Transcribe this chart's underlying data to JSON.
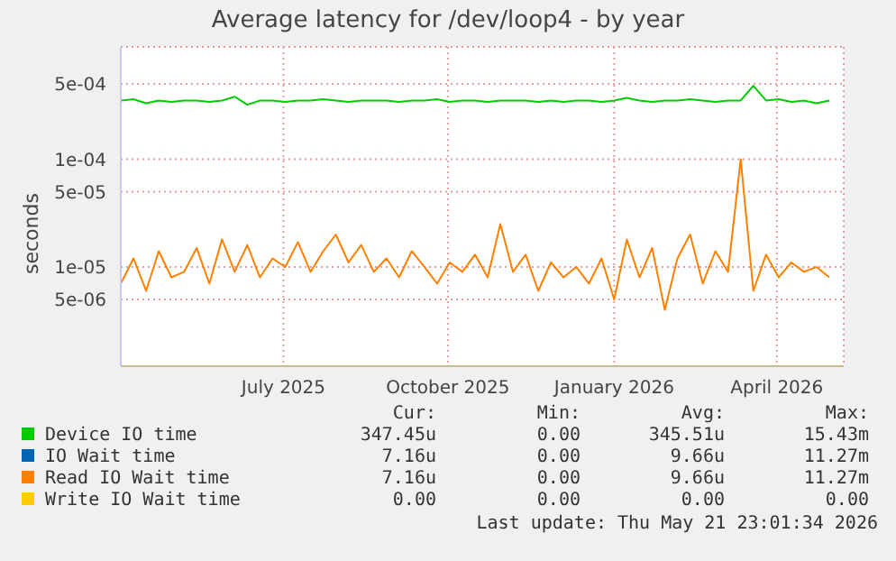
{
  "chart_data": {
    "type": "line",
    "title": "Average latency for /dev/loop4 - by year",
    "ylabel": "seconds",
    "log": "y",
    "grid": true,
    "legend": "bottom",
    "marker": "none",
    "line_style": "solid",
    "ylim": [
      1.2e-06,
      0.0011
    ],
    "yticks": [
      {
        "value": 5e-06,
        "label": "5e-06"
      },
      {
        "value": 1e-05,
        "label": "1e-05"
      },
      {
        "value": 5e-05,
        "label": "5e-05"
      },
      {
        "value": 0.0001,
        "label": "1e-04"
      },
      {
        "value": 0.0005,
        "label": "5e-04"
      }
    ],
    "xlim": [
      "2025-04-17",
      "2026-05-22"
    ],
    "xticks": [
      {
        "value": "2025-07-16",
        "label": "July 2025"
      },
      {
        "value": "2025-10-15",
        "label": "October 2025"
      },
      {
        "value": "2026-01-15",
        "label": "January 2026"
      },
      {
        "value": "2026-04-15",
        "label": "April 2026"
      }
    ],
    "x": [
      "2025-04-17",
      "2025-04-24",
      "2025-05-01",
      "2025-05-08",
      "2025-05-15",
      "2025-05-22",
      "2025-05-29",
      "2025-06-05",
      "2025-06-12",
      "2025-06-19",
      "2025-06-26",
      "2025-07-03",
      "2025-07-10",
      "2025-07-17",
      "2025-07-24",
      "2025-07-31",
      "2025-08-07",
      "2025-08-14",
      "2025-08-21",
      "2025-08-28",
      "2025-09-04",
      "2025-09-11",
      "2025-09-18",
      "2025-09-25",
      "2025-10-02",
      "2025-10-09",
      "2025-10-16",
      "2025-10-23",
      "2025-10-30",
      "2025-11-06",
      "2025-11-13",
      "2025-11-20",
      "2025-11-27",
      "2025-12-04",
      "2025-12-11",
      "2025-12-18",
      "2025-12-25",
      "2026-01-01",
      "2026-01-08",
      "2026-01-15",
      "2026-01-22",
      "2026-01-29",
      "2026-02-05",
      "2026-02-12",
      "2026-02-19",
      "2026-02-26",
      "2026-03-05",
      "2026-03-12",
      "2026-03-19",
      "2026-03-26",
      "2026-04-02",
      "2026-04-09",
      "2026-04-16",
      "2026-04-23",
      "2026-04-30",
      "2026-05-07",
      "2026-05-14"
    ],
    "series": [
      {
        "name": "Device IO time",
        "color": "#00cc00",
        "values": [
          0.00035,
          0.00036,
          0.00033,
          0.00035,
          0.00034,
          0.00035,
          0.00035,
          0.00034,
          0.00035,
          0.00038,
          0.00032,
          0.00035,
          0.00035,
          0.00034,
          0.00035,
          0.00035,
          0.00036,
          0.00035,
          0.00034,
          0.00035,
          0.00035,
          0.00035,
          0.00034,
          0.00035,
          0.00035,
          0.00036,
          0.00034,
          0.00035,
          0.00035,
          0.00034,
          0.00035,
          0.00035,
          0.00035,
          0.00034,
          0.00035,
          0.00034,
          0.00035,
          0.00035,
          0.00034,
          0.00035,
          0.00037,
          0.00035,
          0.00034,
          0.00035,
          0.00035,
          0.00036,
          0.00035,
          0.00034,
          0.00035,
          0.00035,
          0.00048,
          0.00035,
          0.00036,
          0.00034,
          0.00035,
          0.00033,
          0.00035
        ]
      },
      {
        "name": "IO Wait time",
        "color": "#0066b3",
        "values": [
          null,
          null,
          null,
          null,
          null,
          null,
          null,
          null,
          null,
          null,
          null,
          null,
          null,
          null,
          null,
          null,
          null,
          null,
          null,
          null,
          null,
          null,
          null,
          null,
          null,
          null,
          null,
          null,
          null,
          null,
          null,
          null,
          null,
          null,
          null,
          null,
          null,
          null,
          null,
          null,
          null,
          null,
          null,
          null,
          null,
          null,
          null,
          null,
          null,
          null,
          null,
          null,
          null,
          null,
          null,
          null,
          null
        ]
      },
      {
        "name": "Read IO Wait time",
        "color": "#ff8000",
        "values": [
          7e-06,
          1.2e-05,
          6e-06,
          1.4e-05,
          8e-06,
          9e-06,
          1.5e-05,
          7e-06,
          1.8e-05,
          9e-06,
          1.6e-05,
          8e-06,
          1.2e-05,
          1e-05,
          1.7e-05,
          9e-06,
          1.4e-05,
          2e-05,
          1.1e-05,
          1.6e-05,
          9e-06,
          1.2e-05,
          8e-06,
          1.4e-05,
          1e-05,
          7e-06,
          1.1e-05,
          9e-06,
          1.3e-05,
          8e-06,
          2.5e-05,
          9e-06,
          1.3e-05,
          6e-06,
          1.1e-05,
          8e-06,
          1e-05,
          7e-06,
          1.2e-05,
          5e-06,
          1.8e-05,
          8e-06,
          1.5e-05,
          4e-06,
          1.2e-05,
          2e-05,
          7e-06,
          1.4e-05,
          9e-06,
          0.0001,
          6e-06,
          1.3e-05,
          8e-06,
          1.1e-05,
          9e-06,
          1e-05,
          8e-06
        ]
      },
      {
        "name": "Write IO Wait time",
        "color": "#ffcc00",
        "values": [
          null,
          null,
          null,
          null,
          null,
          null,
          null,
          null,
          null,
          null,
          null,
          null,
          null,
          null,
          null,
          null,
          null,
          null,
          null,
          null,
          null,
          null,
          null,
          null,
          null,
          null,
          null,
          null,
          null,
          null,
          null,
          null,
          null,
          null,
          null,
          null,
          null,
          null,
          null,
          null,
          null,
          null,
          null,
          null,
          null,
          null,
          null,
          null,
          null,
          null,
          null,
          null,
          null,
          null,
          null,
          null,
          null
        ]
      }
    ],
    "annotations": [
      "Cur:",
      "Min:",
      "Avg:",
      "Max:",
      "347.45u",
      "0.00",
      "345.51u",
      "15.43m",
      "7.16u",
      "0.00",
      "9.66u",
      "11.27m",
      "7.16u",
      "0.00",
      "9.66u",
      "11.27m",
      "0.00",
      "0.00",
      "0.00",
      "0.00",
      "Last update: Thu May 21 23:01:34 2026"
    ]
  }
}
